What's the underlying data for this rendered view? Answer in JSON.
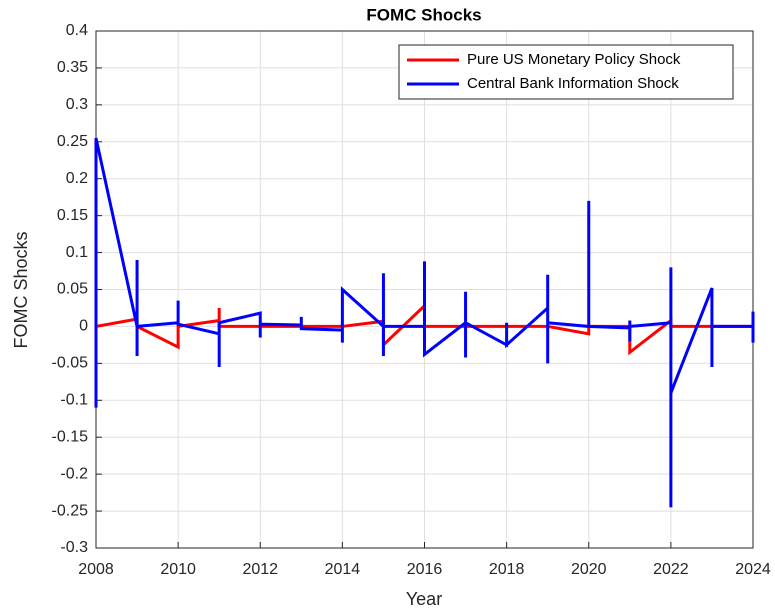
{
  "chart_data": {
    "type": "line",
    "title": "FOMC Shocks",
    "x_label": "Year",
    "y_label": "FOMC Shocks",
    "xlim": [
      2008,
      2024
    ],
    "xticks": [
      2008,
      2010,
      2012,
      2014,
      2016,
      2018,
      2020,
      2022,
      2024
    ],
    "ylim": [
      -0.3,
      0.4
    ],
    "yticks": [
      -0.3,
      -0.25,
      -0.2,
      -0.15,
      -0.1,
      -0.05,
      0,
      0.05,
      0.1,
      0.15,
      0.2,
      0.25,
      0.3,
      0.35,
      0.4
    ],
    "grid": true,
    "legend_position": "upper-right",
    "series": [
      {
        "name": "Pure US Monetary Policy Shock",
        "color": "#ff0000",
        "x": [
          2008,
          2009,
          2009,
          2010,
          2010,
          2011,
          2011,
          2011,
          2012,
          2014,
          2015,
          2015,
          2016,
          2016,
          2019,
          2020,
          2020,
          2021,
          2021,
          2022,
          2022,
          2024
        ],
        "values": [
          0,
          0.01,
          0,
          -0.028,
          0,
          0.008,
          0.025,
          0,
          0,
          0,
          0.007,
          -0.025,
          0.028,
          0,
          0,
          -0.01,
          0,
          0,
          -0.035,
          0.008,
          0,
          0
        ]
      },
      {
        "name": "Central Bank Information Shock",
        "color": "#0000ff",
        "x": [
          2008,
          2008,
          2009,
          2009,
          2009,
          2009,
          2010,
          2010,
          2010,
          2011,
          2011,
          2011,
          2012,
          2012,
          2012,
          2013,
          2013,
          2013,
          2014,
          2014,
          2014,
          2015,
          2015,
          2015,
          2015,
          2016,
          2016,
          2016,
          2017,
          2017,
          2017,
          2017,
          2018,
          2018,
          2018,
          2019,
          2019,
          2019,
          2019,
          2020,
          2020,
          2020,
          2021,
          2021,
          2021,
          2021,
          2022,
          2022,
          2022,
          2022,
          2023,
          2023,
          2023,
          2024,
          2024,
          2024
        ],
        "values": [
          -0.11,
          0.255,
          0,
          0.09,
          -0.04,
          0,
          0.005,
          0.035,
          0.003,
          -0.01,
          -0.055,
          0.005,
          0.018,
          -0.015,
          0.003,
          0.002,
          0.013,
          -0.003,
          -0.005,
          -0.022,
          0.05,
          0,
          0.072,
          -0.04,
          0,
          0,
          0.088,
          -0.038,
          0.005,
          0.047,
          -0.042,
          0.005,
          -0.025,
          0.005,
          -0.025,
          0.025,
          0.07,
          -0.05,
          0.005,
          0,
          0.17,
          0,
          -0.002,
          0.008,
          -0.02,
          0,
          0.005,
          0.08,
          -0.245,
          -0.09,
          0.052,
          -0.055,
          0,
          0,
          0.02,
          -0.022
        ]
      }
    ]
  }
}
